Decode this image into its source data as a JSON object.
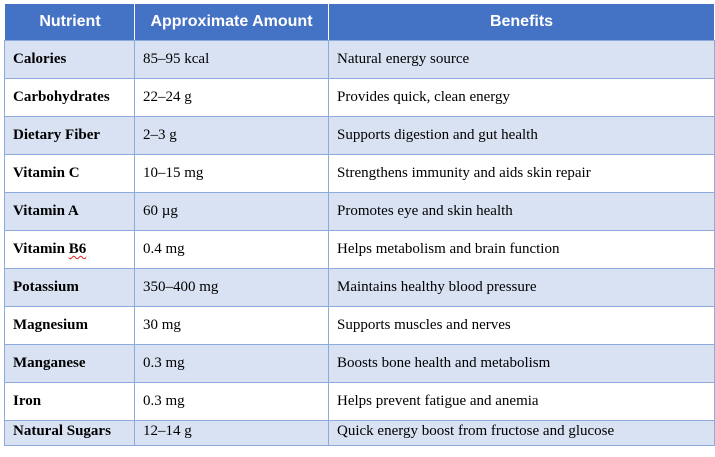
{
  "headers": {
    "nutrient": "Nutrient",
    "amount": "Approximate Amount",
    "benefits": "Benefits"
  },
  "rows": [
    {
      "nutrient": "Calories",
      "amount": "85–95 kcal",
      "benefit": "Natural energy source"
    },
    {
      "nutrient": "Carbohydrates",
      "amount": "22–24 g",
      "benefit": "Provides quick, clean energy"
    },
    {
      "nutrient": "Dietary Fiber",
      "amount": "2–3 g",
      "benefit": "Supports digestion and gut health"
    },
    {
      "nutrient": "Vitamin C",
      "amount": "10–15 mg",
      "benefit": "Strengthens immunity and aids skin repair"
    },
    {
      "nutrient": "Vitamin A",
      "amount": "60 µg",
      "benefit": "Promotes eye and skin health"
    },
    {
      "nutrient_prefix": "Vitamin ",
      "nutrient_flagged": "B6",
      "amount": "0.4 mg",
      "benefit": "Helps metabolism and brain function"
    },
    {
      "nutrient": "Potassium",
      "amount": "350–400 mg",
      "benefit": "Maintains healthy blood pressure"
    },
    {
      "nutrient": "Magnesium",
      "amount": "30 mg",
      "benefit": "Supports muscles and nerves"
    },
    {
      "nutrient": "Manganese",
      "amount": "0.3 mg",
      "benefit": "Boosts bone health and metabolism"
    },
    {
      "nutrient": "Iron",
      "amount": "0.3 mg",
      "benefit": "Helps prevent fatigue and anemia"
    },
    {
      "nutrient": "Natural Sugars",
      "amount": "12–14 g",
      "benefit": "Quick energy boost from fructose and glucose"
    }
  ],
  "colors": {
    "header_bg": "#4472c4",
    "band_bg": "#d9e2f3",
    "border": "#8eaadb",
    "spellcheck_underline": "#e02020"
  }
}
